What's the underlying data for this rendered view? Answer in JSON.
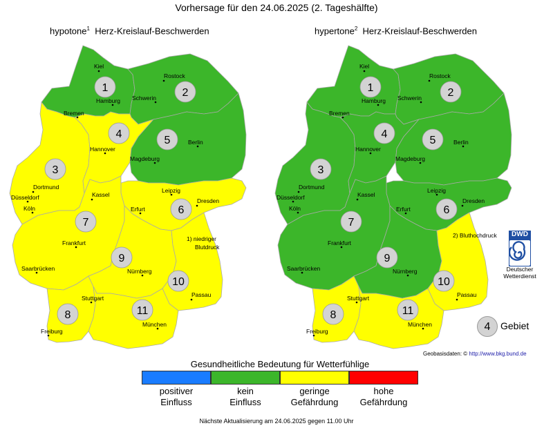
{
  "title": "Vorhersage für den 24.06.2025 (2. Tageshälfte)",
  "maps": [
    {
      "id": "hypotone",
      "title_prefix": "hypotone",
      "title_sup": "1",
      "title_suffix": "Herz-Kreislauf-Beschwerden",
      "regions": [
        {
          "num": "1",
          "status": "kein Einfluss"
        },
        {
          "num": "2",
          "status": "kein Einfluss"
        },
        {
          "num": "3",
          "status": "geringe Gefährdung"
        },
        {
          "num": "4",
          "status": "geringe Gefährdung"
        },
        {
          "num": "5",
          "status": "kein Einfluss"
        },
        {
          "num": "6",
          "status": "geringe Gefährdung"
        },
        {
          "num": "7",
          "status": "geringe Gefährdung"
        },
        {
          "num": "8",
          "status": "geringe Gefährdung"
        },
        {
          "num": "9",
          "status": "geringe Gefährdung"
        },
        {
          "num": "10",
          "status": "geringe Gefährdung"
        },
        {
          "num": "11",
          "status": "geringe Gefährdung"
        }
      ],
      "note": "1) niedriger Blutdruck"
    },
    {
      "id": "hypertone",
      "title_prefix": "hypertone",
      "title_sup": "2",
      "title_suffix": "Herz-Kreislauf-Beschwerden",
      "regions": [
        {
          "num": "1",
          "status": "kein Einfluss"
        },
        {
          "num": "2",
          "status": "kein Einfluss"
        },
        {
          "num": "3",
          "status": "kein Einfluss"
        },
        {
          "num": "4",
          "status": "kein Einfluss"
        },
        {
          "num": "5",
          "status": "kein Einfluss"
        },
        {
          "num": "6",
          "status": "kein Einfluss"
        },
        {
          "num": "7",
          "status": "kein Einfluss"
        },
        {
          "num": "8",
          "status": "geringe Gefährdung"
        },
        {
          "num": "9",
          "status": "kein Einfluss"
        },
        {
          "num": "10",
          "status": "geringe Gefährdung"
        },
        {
          "num": "11",
          "status": "geringe Gefährdung"
        }
      ],
      "note": "2) Bluthochdruck"
    }
  ],
  "cities": [
    "Kiel",
    "Rostock",
    "Hamburg",
    "Schwerin",
    "Bremen",
    "Hannover",
    "Berlin",
    "Magdeburg",
    "Dortmund",
    "Düsseldorf",
    "Köln",
    "Kassel",
    "Leipzig",
    "Dresden",
    "Erfurt",
    "Frankfurt",
    "Saarbrücken",
    "Nürnberg",
    "Stuttgart",
    "Passau",
    "Freiburg",
    "München"
  ],
  "legend": {
    "title": "Gesundheitliche Bedeutung für Wetterfühlige",
    "items": [
      {
        "line1": "positiver",
        "line2": "Einfluss",
        "color": "#1a7cff"
      },
      {
        "line1": "kein",
        "line2": "Einfluss",
        "color": "#3cb62a"
      },
      {
        "line1": "geringe",
        "line2": "Gefährdung",
        "color": "#ffff00"
      },
      {
        "line1": "hohe",
        "line2": "Gefährdung",
        "color": "#ff0000"
      }
    ]
  },
  "region_legend": {
    "sample_num": "4",
    "label": "Gebiet"
  },
  "dwd": {
    "logo_text": "DWD",
    "caption_line1": "Deutscher",
    "caption_line2": "Wetterdienst"
  },
  "geo": {
    "prefix": "Geobasisdaten: ©",
    "link": "http://www.bkg.bund.de"
  },
  "footer": "Nächste Aktualisierung am 24.06.2025 gegen 11.00 Uhr"
}
